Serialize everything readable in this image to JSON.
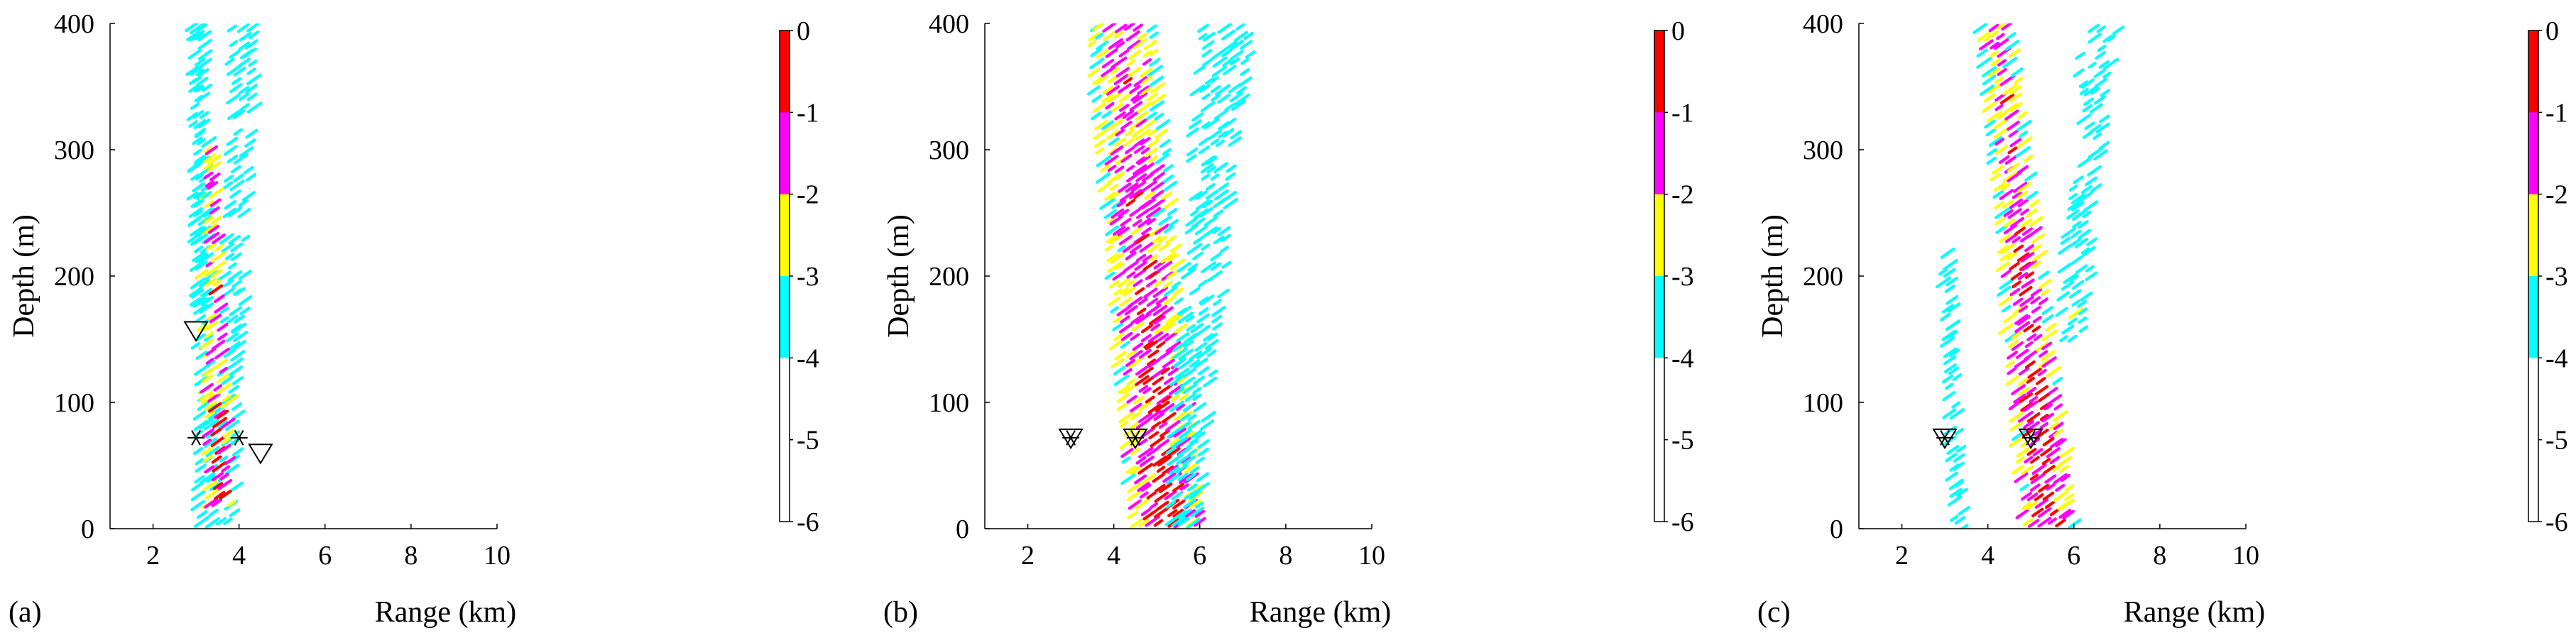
{
  "chart_data": [
    {
      "type": "heatmap",
      "panel_label": "(a)",
      "xlabel": "Range (km)",
      "ylabel": "Depth (m)",
      "xlim": [
        1,
        10
      ],
      "ylim": [
        0,
        400
      ],
      "xticks": [
        "2",
        "4",
        "6",
        "8",
        "10"
      ],
      "yticks": [
        "0",
        "100",
        "200",
        "300",
        "400"
      ],
      "colorbar": {
        "ticks": [
          "0",
          "-1",
          "-2",
          "-3",
          "-4",
          "-5",
          "-6"
        ],
        "levels": [
          {
            "range": [
              -1,
              0
            ],
            "color": "#ff0000"
          },
          {
            "range": [
              -2,
              -1
            ],
            "color": "#ff00ff"
          },
          {
            "range": [
              -3,
              -2
            ],
            "color": "#ffff00"
          },
          {
            "range": [
              -4,
              -3
            ],
            "color": "#00ffff"
          },
          {
            "range": [
              -6,
              -4
            ],
            "color": "#ffffff"
          }
        ]
      },
      "markers": [
        {
          "symbol": "triangle-down",
          "x": 3.0,
          "y": 157
        },
        {
          "symbol": "triangle-down",
          "x": 4.5,
          "y": 60
        },
        {
          "symbol": "asterisk",
          "x": 3.0,
          "y": 72
        },
        {
          "symbol": "asterisk",
          "x": 4.0,
          "y": 72
        }
      ],
      "regions": [
        {
          "x_bottom": [
            3.0,
            3.5
          ],
          "x_top": [
            2.95,
            3.3
          ],
          "y": [
            5,
            400
          ],
          "peak": 0.4
        },
        {
          "x_bottom": [
            3.5,
            3.95
          ],
          "x_top": [
            3.8,
            4.5
          ],
          "y": [
            5,
            400
          ],
          "peak": 0.3
        },
        {
          "x_bottom": [
            3.2,
            3.9
          ],
          "x_top": [
            3.25,
            3.45
          ],
          "y": [
            20,
            300
          ],
          "peak": 1.0
        },
        {
          "x_bottom": [
            2.9,
            3.2
          ],
          "x_top": [
            2.9,
            3.1
          ],
          "y": [
            180,
            400
          ],
          "peak": 0.2
        }
      ]
    },
    {
      "type": "heatmap",
      "panel_label": "(b)",
      "xlabel": "Range (km)",
      "ylabel": "Depth (m)",
      "xlim": [
        1,
        10
      ],
      "ylim": [
        0,
        400
      ],
      "xticks": [
        "2",
        "4",
        "6",
        "8",
        "10"
      ],
      "yticks": [
        "0",
        "100",
        "200",
        "300",
        "400"
      ],
      "colorbar": {
        "ticks": [
          "0",
          "-1",
          "-2",
          "-3",
          "-4",
          "-5",
          "-6"
        ],
        "levels": [
          {
            "range": [
              -1,
              0
            ],
            "color": "#ff0000"
          },
          {
            "range": [
              -2,
              -1
            ],
            "color": "#ff00ff"
          },
          {
            "range": [
              -3,
              -2
            ],
            "color": "#ffff00"
          },
          {
            "range": [
              -4,
              -3
            ],
            "color": "#00ffff"
          },
          {
            "range": [
              -6,
              -4
            ],
            "color": "#ffffff"
          }
        ]
      },
      "markers": [
        {
          "symbol": "triangle-down",
          "x": 3.0,
          "y": 72
        },
        {
          "symbol": "asterisk",
          "x": 3.0,
          "y": 72
        },
        {
          "symbol": "triangle-down",
          "x": 4.5,
          "y": 72
        },
        {
          "symbol": "asterisk",
          "x": 4.5,
          "y": 72
        }
      ],
      "regions": [
        {
          "x_bottom": [
            4.4,
            6.1
          ],
          "x_top": [
            3.4,
            5.0
          ],
          "y": [
            5,
            400
          ],
          "peak": 1.0
        },
        {
          "x_bottom": [
            5.2,
            6.0
          ],
          "x_top": [
            6.0,
            7.3
          ],
          "y": [
            5,
            400
          ],
          "peak": 0.3
        }
      ]
    },
    {
      "type": "heatmap",
      "panel_label": "(c)",
      "xlabel": "Range (km)",
      "ylabel": "Depth (m)",
      "xlim": [
        1,
        10
      ],
      "ylim": [
        0,
        400
      ],
      "xticks": [
        "2",
        "4",
        "6",
        "8",
        "10"
      ],
      "yticks": [
        "0",
        "100",
        "200",
        "300",
        "400"
      ],
      "colorbar": {
        "ticks": [
          "0",
          "-1",
          "-2",
          "-3",
          "-4",
          "-5",
          "-6"
        ],
        "levels": [
          {
            "range": [
              -1,
              0
            ],
            "color": "#ff0000"
          },
          {
            "range": [
              -2,
              -1
            ],
            "color": "#ff00ff"
          },
          {
            "range": [
              -3,
              -2
            ],
            "color": "#ffff00"
          },
          {
            "range": [
              -4,
              -3
            ],
            "color": "#00ffff"
          },
          {
            "range": [
              -6,
              -4
            ],
            "color": "#ffffff"
          }
        ]
      },
      "markers": [
        {
          "symbol": "triangle-down",
          "x": 3.0,
          "y": 72
        },
        {
          "symbol": "asterisk",
          "x": 3.0,
          "y": 72
        },
        {
          "symbol": "triangle-down",
          "x": 5.0,
          "y": 72
        },
        {
          "symbol": "asterisk",
          "x": 5.0,
          "y": 72
        }
      ],
      "regions": [
        {
          "x_bottom": [
            4.8,
            6.1
          ],
          "x_top": [
            3.8,
            4.6
          ],
          "y": [
            5,
            400
          ],
          "peak": 1.0
        },
        {
          "x_bottom": [
            5.6,
            6.3
          ],
          "x_top": [
            6.2,
            7.1
          ],
          "y": [
            150,
            400
          ],
          "peak": 0.3
        },
        {
          "x_bottom": [
            3.2,
            3.5
          ],
          "x_top": [
            2.9,
            3.2
          ],
          "y": [
            0,
            220
          ],
          "peak": 0.3
        }
      ]
    }
  ]
}
